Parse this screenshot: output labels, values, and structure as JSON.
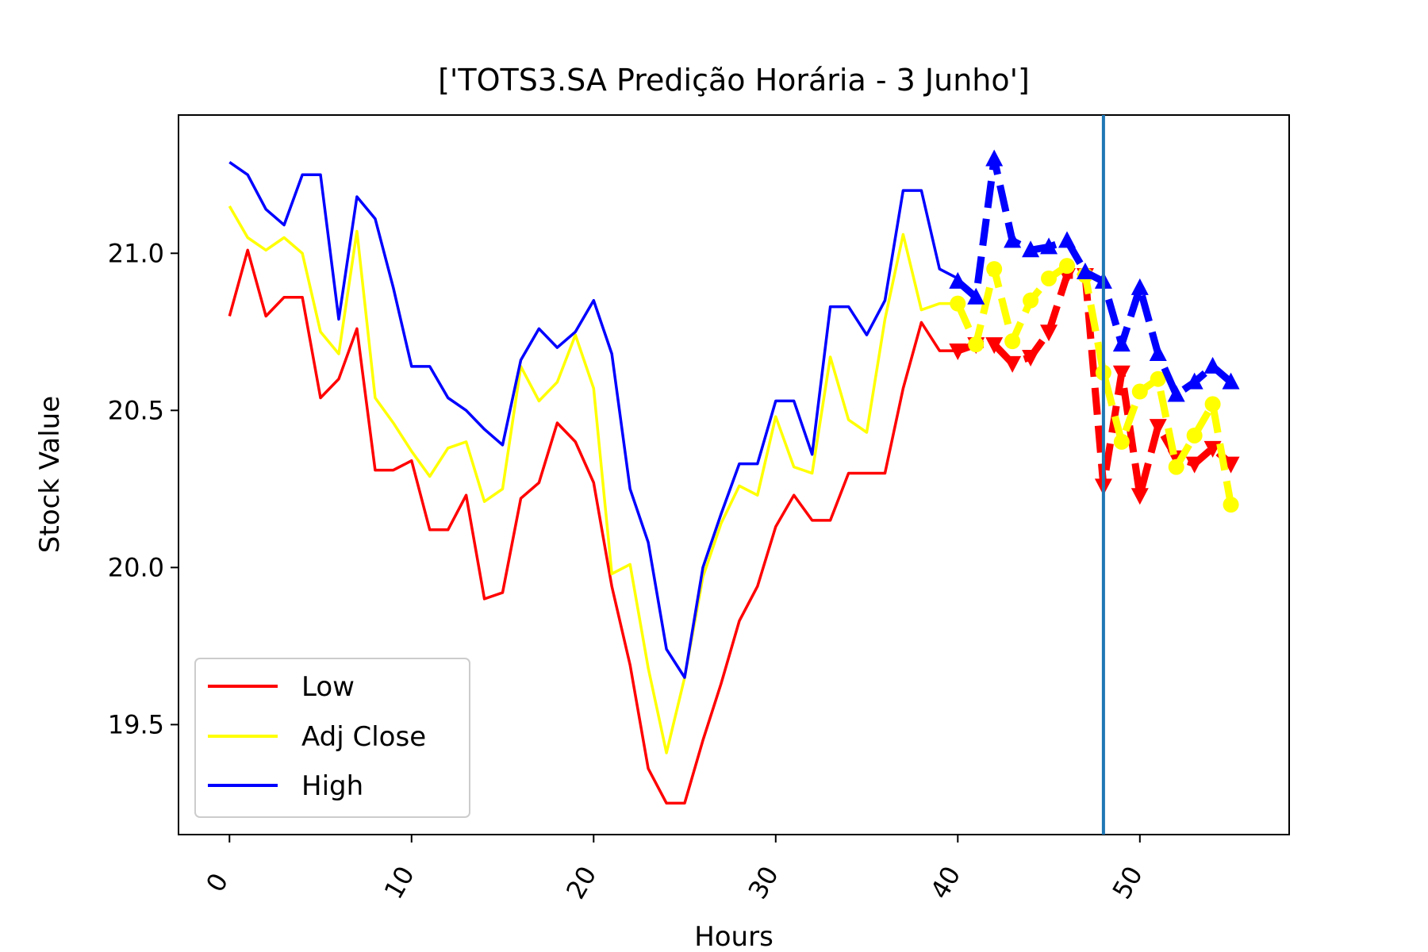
{
  "chart_data": {
    "type": "line",
    "title": "['TOTS3.SA Predição Horária - 3 Junho']",
    "xlabel": "Hours",
    "ylabel": "Stock Value",
    "xlim": [
      -2.8,
      58.2
    ],
    "ylim": [
      19.15,
      21.44
    ],
    "xticks": [
      0,
      10,
      20,
      30,
      40,
      50
    ],
    "yticks": [
      19.5,
      20.0,
      20.5,
      21.0
    ],
    "ytick_labels": [
      "19.5",
      "20.0",
      "20.5",
      "21.0"
    ],
    "grid": false,
    "legend_position": "lower-left",
    "vertical_line": {
      "x": 48,
      "color": "#1f77b4"
    },
    "series": [
      {
        "name": "Low",
        "color": "#ff0000",
        "style": "solid",
        "x": [
          0,
          1,
          2,
          3,
          4,
          5,
          6,
          7,
          8,
          9,
          10,
          11,
          12,
          13,
          14,
          15,
          16,
          17,
          18,
          19,
          20,
          21,
          22,
          23,
          24,
          25,
          26,
          27,
          28,
          29,
          30,
          31,
          32,
          33,
          34,
          35,
          36,
          37,
          38,
          39,
          40
        ],
        "values": [
          20.8,
          21.01,
          20.8,
          20.86,
          20.86,
          20.54,
          20.6,
          20.76,
          20.31,
          20.31,
          20.34,
          20.12,
          20.12,
          20.23,
          19.9,
          19.92,
          20.22,
          20.27,
          20.46,
          20.4,
          20.27,
          19.94,
          19.69,
          19.36,
          19.25,
          19.25,
          19.45,
          19.63,
          19.83,
          19.94,
          20.13,
          20.23,
          20.15,
          20.15,
          20.3,
          20.3,
          20.3,
          20.57,
          20.78,
          20.69,
          20.69
        ]
      },
      {
        "name": "Adj Close",
        "color": "#ffff00",
        "style": "solid",
        "x": [
          0,
          1,
          2,
          3,
          4,
          5,
          6,
          7,
          8,
          9,
          10,
          11,
          12,
          13,
          14,
          15,
          16,
          17,
          18,
          19,
          20,
          21,
          22,
          23,
          24,
          25,
          26,
          27,
          28,
          29,
          30,
          31,
          32,
          33,
          34,
          35,
          36,
          37,
          38,
          39,
          40
        ],
        "values": [
          21.15,
          21.05,
          21.01,
          21.05,
          21.0,
          20.75,
          20.68,
          21.07,
          20.54,
          20.46,
          20.37,
          20.29,
          20.38,
          20.4,
          20.21,
          20.25,
          20.64,
          20.53,
          20.59,
          20.74,
          20.57,
          19.98,
          20.01,
          19.68,
          19.41,
          19.65,
          19.97,
          20.14,
          20.26,
          20.23,
          20.48,
          20.32,
          20.3,
          20.67,
          20.47,
          20.43,
          20.79,
          21.06,
          20.82,
          20.84,
          20.84
        ]
      },
      {
        "name": "High",
        "color": "#0000ff",
        "style": "solid",
        "x": [
          0,
          1,
          2,
          3,
          4,
          5,
          6,
          7,
          8,
          9,
          10,
          11,
          12,
          13,
          14,
          15,
          16,
          17,
          18,
          19,
          20,
          21,
          22,
          23,
          24,
          25,
          26,
          27,
          28,
          29,
          30,
          31,
          32,
          33,
          34,
          35,
          36,
          37,
          38,
          39,
          40
        ],
        "values": [
          21.29,
          21.25,
          21.14,
          21.09,
          21.25,
          21.25,
          20.79,
          21.18,
          21.11,
          20.89,
          20.64,
          20.64,
          20.54,
          20.5,
          20.44,
          20.39,
          20.66,
          20.76,
          20.7,
          20.75,
          20.85,
          20.68,
          20.25,
          20.08,
          19.74,
          19.65,
          20.0,
          20.17,
          20.33,
          20.33,
          20.53,
          20.53,
          20.36,
          20.83,
          20.83,
          20.74,
          20.85,
          21.2,
          21.2,
          20.95,
          20.92
        ]
      },
      {
        "color": "#ff0000",
        "style": "dashed",
        "marker": "triangle-down",
        "x": [
          40,
          41,
          42,
          43,
          44,
          45,
          46,
          47,
          48,
          49,
          50,
          51,
          52,
          53,
          54,
          55
        ],
        "values": [
          20.69,
          20.71,
          20.71,
          20.65,
          20.67,
          20.75,
          20.93,
          20.93,
          20.26,
          20.62,
          20.23,
          20.45,
          20.35,
          20.33,
          20.38,
          20.33
        ]
      },
      {
        "color": "#ffff00",
        "style": "dashed",
        "marker": "circle",
        "x": [
          40,
          41,
          42,
          43,
          44,
          45,
          46,
          47,
          48,
          49,
          50,
          51,
          52,
          53,
          54,
          55
        ],
        "values": [
          20.84,
          20.71,
          20.95,
          20.72,
          20.85,
          20.92,
          20.96,
          20.93,
          20.62,
          20.4,
          20.56,
          20.6,
          20.32,
          20.42,
          20.52,
          20.2
        ]
      },
      {
        "color": "#0000ff",
        "style": "dashed",
        "marker": "triangle-up",
        "x": [
          40,
          41,
          42,
          43,
          44,
          45,
          46,
          47,
          48,
          49,
          50,
          51,
          52,
          53,
          54,
          55
        ],
        "values": [
          20.91,
          20.86,
          21.3,
          21.04,
          21.01,
          21.02,
          21.04,
          20.94,
          20.91,
          20.71,
          20.89,
          20.68,
          20.55,
          20.59,
          20.64,
          20.59
        ]
      }
    ]
  }
}
